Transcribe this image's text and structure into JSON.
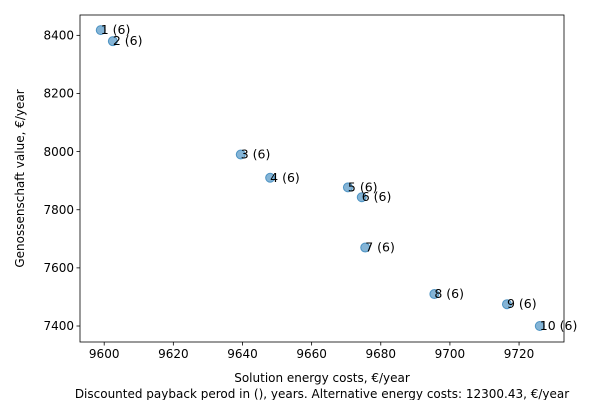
{
  "chart_data": {
    "type": "scatter",
    "xlabel": "Solution energy costs, €/year",
    "ylabel": "Genossenschaft value, €/year",
    "caption": "Discounted payback perod in (), years. Alternative energy costs: 12300.43, €/year",
    "xlim": [
      9593,
      9733
    ],
    "ylim": [
      7345,
      8470
    ],
    "xticks": [
      9600,
      9620,
      9640,
      9660,
      9680,
      9700,
      9720
    ],
    "yticks": [
      7400,
      7600,
      7800,
      8000,
      8200,
      8400
    ],
    "grid": false,
    "marker_color": "#1f77b4",
    "points": [
      {
        "x": 9599.0,
        "y": 8418,
        "label": "1 (6)"
      },
      {
        "x": 9602.5,
        "y": 8380,
        "label": "2 (6)"
      },
      {
        "x": 9639.5,
        "y": 7990,
        "label": "3 (6)"
      },
      {
        "x": 9648.0,
        "y": 7910,
        "label": "4 (6)"
      },
      {
        "x": 9670.5,
        "y": 7877,
        "label": "5 (6)"
      },
      {
        "x": 9674.5,
        "y": 7843,
        "label": "6 (6)"
      },
      {
        "x": 9675.5,
        "y": 7670,
        "label": "7 (6)"
      },
      {
        "x": 9695.5,
        "y": 7510,
        "label": "8 (6)"
      },
      {
        "x": 9716.5,
        "y": 7475,
        "label": "9 (6)"
      },
      {
        "x": 9726.0,
        "y": 7400,
        "label": "10 (6)"
      }
    ]
  }
}
